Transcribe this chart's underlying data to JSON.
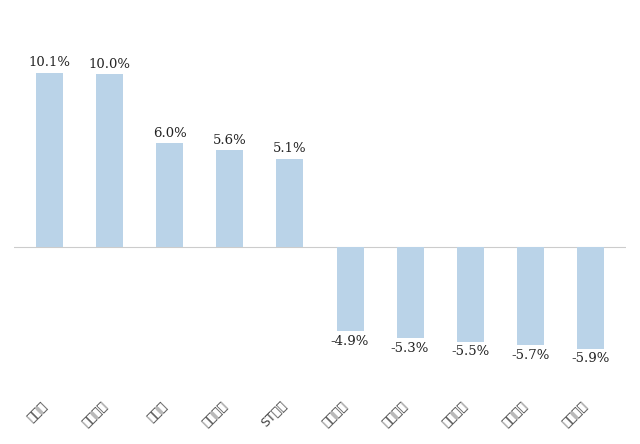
{
  "categories": [
    "黑苝麻",
    "兰州黄河",
    "酒鬼酒",
    "青岛食品",
    "ST加加",
    "惠发食品",
    "绝味食品",
    "金种子酒",
    "皇台酒业",
    "盖世食品"
  ],
  "values": [
    10.1,
    10.0,
    6.0,
    5.6,
    5.1,
    -4.9,
    -5.3,
    -5.5,
    -5.7,
    -5.9
  ],
  "bar_color": "#bad3e8",
  "labels": [
    "10.1%",
    "10.0%",
    "6.0%",
    "5.6%",
    "5.1%",
    "-4.9%",
    "-5.3%",
    "-5.5%",
    "-5.7%",
    "-5.9%"
  ],
  "background_color": "#ffffff",
  "ylim": [
    -8.5,
    13.5
  ],
  "figsize": [
    6.4,
    4.44
  ],
  "dpi": 100,
  "label_fontsize": 9.5,
  "tick_fontsize": 9.0
}
